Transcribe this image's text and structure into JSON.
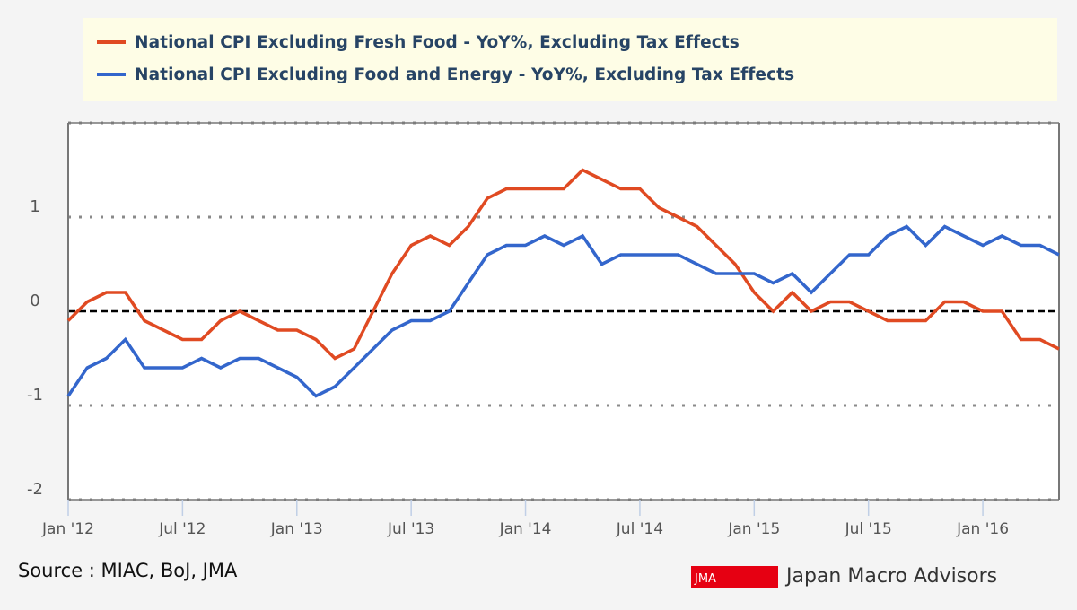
{
  "legend": {
    "items": [
      {
        "label": "National CPI Excluding Fresh Food - YoY%, Excluding Tax Effects",
        "color": "#e04a22"
      },
      {
        "label": "National CPI Excluding Food and Energy - YoY%, Excluding Tax Effects",
        "color": "#3366cc"
      }
    ]
  },
  "footer": {
    "source": "Source : MIAC, BoJ, JMA",
    "logo_badge": "JMA",
    "logo_name": "Japan Macro Advisors",
    "logo_color": "#e60012"
  },
  "chart_data": {
    "type": "line",
    "title": "",
    "xlabel": "",
    "ylabel": "",
    "x_start": "Jan 2012",
    "x_end": "May 2016",
    "x_frequency": "monthly",
    "ylim": [
      -2,
      2
    ],
    "yticks": [
      -2,
      -1,
      0,
      1
    ],
    "ytick_labels": [
      "-2",
      "-1",
      "0",
      "1"
    ],
    "xtick_labels": [
      "Jan '12",
      "Jul '12",
      "Jan '13",
      "Jul '13",
      "Jan '14",
      "Jul '14",
      "Jan '15",
      "Jul '15",
      "Jan '16"
    ],
    "xtick_month_index": [
      0,
      6,
      12,
      18,
      24,
      30,
      36,
      42,
      48
    ],
    "grid": true,
    "zero_line": "dashed",
    "legend_position": "top",
    "series": [
      {
        "name": "National CPI Excluding Fresh Food - YoY%, Excluding Tax Effects",
        "color": "#e04a22",
        "values": [
          -0.1,
          0.1,
          0.2,
          0.2,
          -0.1,
          -0.2,
          -0.3,
          -0.3,
          -0.1,
          0.0,
          -0.1,
          -0.2,
          -0.2,
          -0.3,
          -0.5,
          -0.4,
          0.0,
          0.4,
          0.7,
          0.8,
          0.7,
          0.9,
          1.2,
          1.3,
          1.3,
          1.3,
          1.3,
          1.5,
          1.4,
          1.3,
          1.3,
          1.1,
          1.0,
          0.9,
          0.7,
          0.5,
          0.2,
          0.0,
          0.2,
          0.0,
          0.1,
          0.1,
          0.0,
          -0.1,
          -0.1,
          -0.1,
          0.1,
          0.1,
          0.0,
          0.0,
          -0.3,
          -0.3,
          -0.4
        ]
      },
      {
        "name": "National CPI Excluding Food and Energy - YoY%, Excluding Tax Effects",
        "color": "#3366cc",
        "values": [
          -0.9,
          -0.6,
          -0.5,
          -0.3,
          -0.6,
          -0.6,
          -0.6,
          -0.5,
          -0.6,
          -0.5,
          -0.5,
          -0.6,
          -0.7,
          -0.9,
          -0.8,
          -0.6,
          -0.4,
          -0.2,
          -0.1,
          -0.1,
          0.0,
          0.3,
          0.6,
          0.7,
          0.7,
          0.8,
          0.7,
          0.8,
          0.5,
          0.6,
          0.6,
          0.6,
          0.6,
          0.5,
          0.4,
          0.4,
          0.4,
          0.3,
          0.4,
          0.2,
          0.4,
          0.6,
          0.6,
          0.8,
          0.9,
          0.7,
          0.9,
          0.8,
          0.7,
          0.8,
          0.7,
          0.7,
          0.6
        ]
      }
    ]
  }
}
